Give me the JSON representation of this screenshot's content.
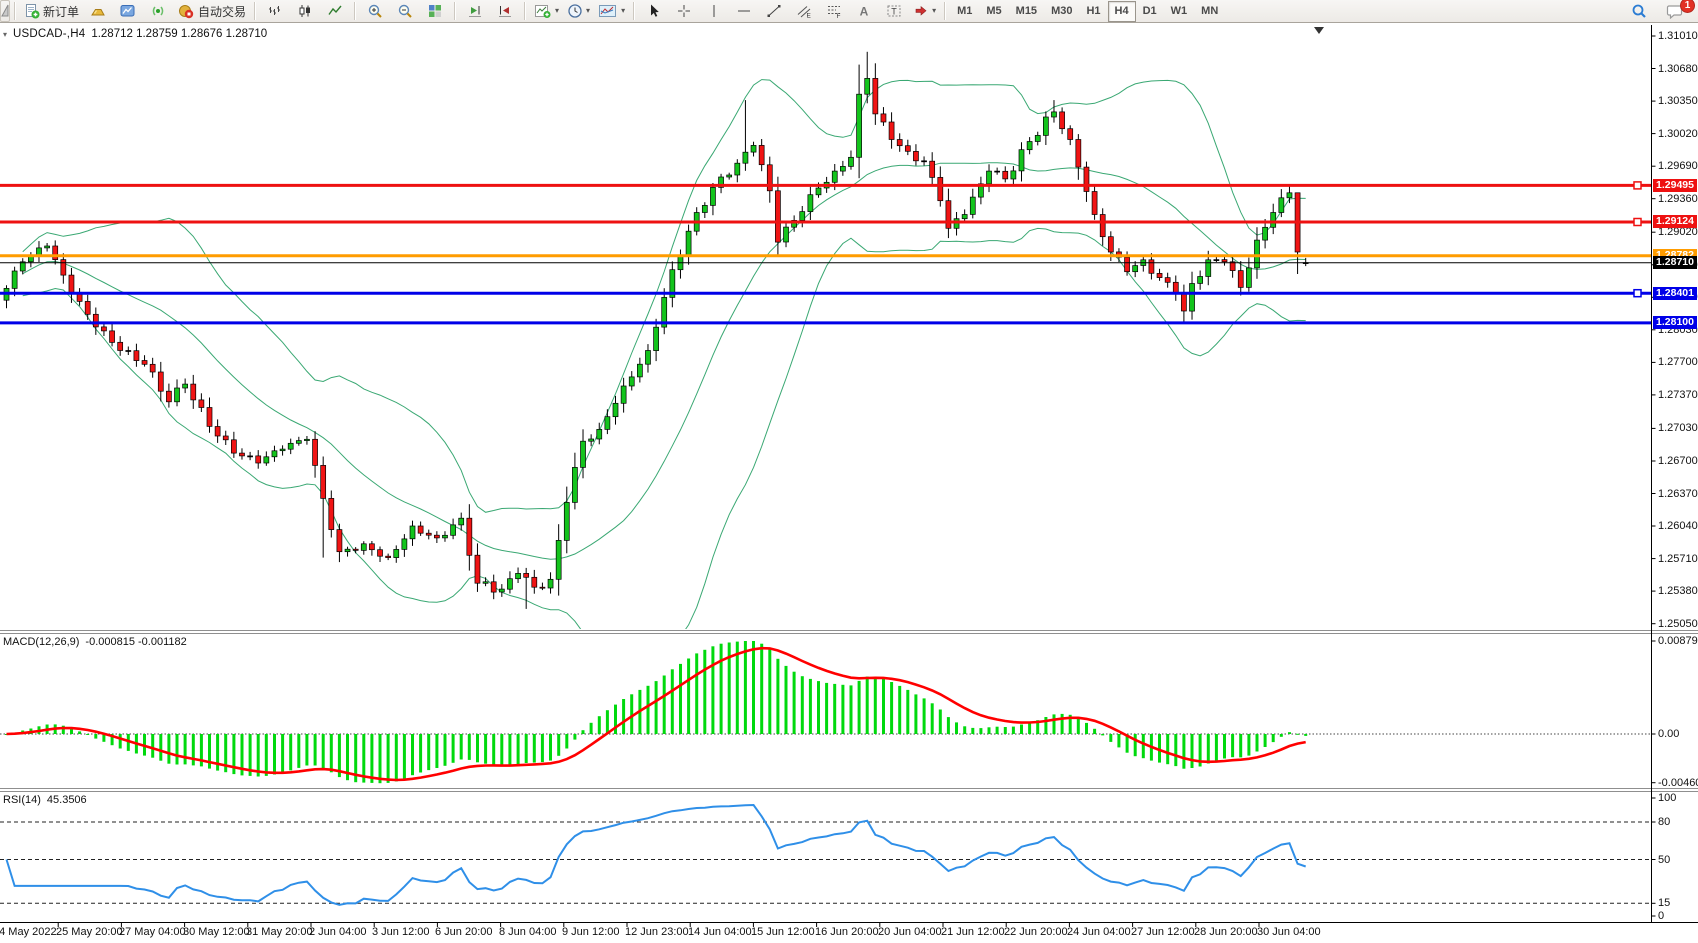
{
  "toolbar": {
    "new_order": "新订单",
    "auto_trading": "自动交易",
    "timeframes": [
      "M1",
      "M5",
      "M15",
      "M30",
      "H1",
      "H4",
      "D1",
      "W1",
      "MN"
    ],
    "active_timeframe": "H4",
    "notification_badge": "1"
  },
  "chart": {
    "symbol_period": "USDCAD-,H4",
    "quotes": "1.28712 1.28759 1.28676 1.28710",
    "current_price": "1.28710",
    "price_axis": [
      "1.31010",
      "1.30680",
      "1.30350",
      "1.30020",
      "1.29690",
      "1.29360",
      "1.29020",
      "1.28690",
      "1.28360",
      "1.28030",
      "1.27700",
      "1.27370",
      "1.27030",
      "1.26700",
      "1.26370",
      "1.26040",
      "1.25710",
      "1.25380",
      "1.25050"
    ],
    "levels": [
      {
        "price": "1.29495",
        "color": "#ee1111",
        "handle": true
      },
      {
        "price": "1.29124",
        "color": "#ee1111",
        "handle": true
      },
      {
        "price": "1.28782",
        "color": "#ff9c00",
        "handle": false
      },
      {
        "price": "1.28401",
        "color": "#0000e8",
        "handle": true
      },
      {
        "price": "1.28100",
        "color": "#0000e8",
        "handle": false
      }
    ],
    "time_axis": [
      "24 May 2022",
      "25 May 20:00",
      "27 May 04:00",
      "30 May 12:00",
      "31 May 20:00",
      "2 Jun 04:00",
      "3 Jun 12:00",
      "6 Jun 20:00",
      "8 Jun 04:00",
      "9 Jun 12:00",
      "12 Jun 23:00",
      "14 Jun 04:00",
      "15 Jun 12:00",
      "16 Jun 20:00",
      "20 Jun 04:00",
      "21 Jun 12:00",
      "22 Jun 20:00",
      "24 Jun 04:00",
      "27 Jun 12:00",
      "28 Jun 20:00",
      "30 Jun 04:00"
    ]
  },
  "macd": {
    "name": "MACD(12,26,9)",
    "values": "-0.000815 -0.001182",
    "axis_max": "0.008791",
    "axis_zero": "0.00",
    "axis_min": "-0.004601"
  },
  "rsi": {
    "name": "RSI(14)",
    "value": "45.3506",
    "axis": [
      "100",
      "80",
      "50",
      "15",
      "0"
    ],
    "levels": [
      80,
      50,
      15
    ]
  },
  "chart_data": {
    "type": "candlestick",
    "symbol": "USDCAD",
    "timeframe": "H4",
    "last_bar": {
      "open": 1.28712,
      "high": 1.28759,
      "low": 1.28676,
      "close": 1.2871
    },
    "bars": 161,
    "price_range": [
      1.2505,
      1.3112
    ],
    "close_waypoints": [
      [
        0,
        1.2845
      ],
      [
        2,
        1.2872
      ],
      [
        5,
        1.2888
      ],
      [
        8,
        1.284
      ],
      [
        11,
        1.2806
      ],
      [
        14,
        1.2782
      ],
      [
        17,
        1.2768
      ],
      [
        20,
        1.273
      ],
      [
        22,
        1.2748
      ],
      [
        25,
        1.2705
      ],
      [
        28,
        1.2678
      ],
      [
        31,
        1.2668
      ],
      [
        34,
        1.2682
      ],
      [
        37,
        1.2692
      ],
      [
        39,
        1.2632
      ],
      [
        41,
        1.2578
      ],
      [
        44,
        1.2586
      ],
      [
        47,
        1.2572
      ],
      [
        50,
        1.2604
      ],
      [
        53,
        1.2592
      ],
      [
        56,
        1.2612
      ],
      [
        58,
        1.2546
      ],
      [
        61,
        1.254
      ],
      [
        63,
        1.2556
      ],
      [
        65,
        1.2542
      ],
      [
        67,
        1.255
      ],
      [
        69,
        1.2628
      ],
      [
        71,
        1.269
      ],
      [
        73,
        1.2702
      ],
      [
        76,
        1.2746
      ],
      [
        79,
        1.2782
      ],
      [
        82,
        1.2864
      ],
      [
        85,
        1.2922
      ],
      [
        88,
        1.2958
      ],
      [
        90,
        1.2972
      ],
      [
        92,
        1.299
      ],
      [
        94,
        1.2944
      ],
      [
        95,
        1.2892
      ],
      [
        97,
        1.2914
      ],
      [
        99,
        1.294
      ],
      [
        102,
        1.2964
      ],
      [
        104,
        1.2978
      ],
      [
        105,
        1.3042
      ],
      [
        106,
        1.3058
      ],
      [
        107,
        1.3022
      ],
      [
        109,
        1.2996
      ],
      [
        111,
        1.2984
      ],
      [
        113,
        1.2974
      ],
      [
        115,
        1.2934
      ],
      [
        116,
        1.2906
      ],
      [
        118,
        1.292
      ],
      [
        121,
        1.2964
      ],
      [
        123,
        1.2956
      ],
      [
        126,
        1.2994
      ],
      [
        129,
        1.3024
      ],
      [
        131,
        1.2996
      ],
      [
        134,
        1.292
      ],
      [
        136,
        1.2882
      ],
      [
        138,
        1.2862
      ],
      [
        140,
        1.2874
      ],
      [
        142,
        1.2856
      ],
      [
        144,
        1.284
      ],
      [
        145,
        1.2822
      ],
      [
        146,
        1.285
      ],
      [
        148,
        1.2874
      ],
      [
        150,
        1.2872
      ],
      [
        152,
        1.2846
      ],
      [
        154,
        1.2894
      ],
      [
        156,
        1.2922
      ],
      [
        158,
        1.2942
      ],
      [
        159,
        1.2882
      ],
      [
        160,
        1.2871
      ]
    ],
    "wick_overrides": [
      [
        4,
        "high",
        1.2893
      ],
      [
        39,
        "low",
        1.2572
      ],
      [
        64,
        "low",
        1.252
      ],
      [
        91,
        "high",
        1.3036
      ],
      [
        95,
        "low",
        1.2878
      ],
      [
        105,
        "high",
        1.3072
      ],
      [
        106,
        "high",
        1.3085
      ],
      [
        129,
        "high",
        1.3036
      ],
      [
        145,
        "low",
        1.281
      ],
      [
        158,
        "high",
        1.2949
      ],
      [
        159,
        "high",
        1.2896
      ]
    ],
    "overlays": {
      "bollinger": {
        "period": 20,
        "deviation": 2,
        "color": "#3aa873"
      }
    },
    "horizontal_levels": [
      1.29495,
      1.29124,
      1.28782,
      1.28401,
      1.281
    ],
    "indicators": [
      {
        "type": "MACD",
        "params": [
          12,
          26,
          9
        ],
        "values": [
          -0.000815,
          -0.001182
        ],
        "range": [
          -0.004601,
          0.008791
        ],
        "histogram_color": "#00d90d",
        "signal_color": "#ff0000"
      },
      {
        "type": "RSI",
        "params": [
          14
        ],
        "value": 45.3506,
        "range": [
          0,
          100
        ],
        "levels": [
          15,
          50,
          80
        ],
        "color": "#2f8fe8"
      }
    ],
    "colors": {
      "bull": "#13c41c",
      "bear": "#f01414",
      "level_red": "#ee1111",
      "level_orange": "#ff9c00",
      "level_blue": "#0000e8",
      "current_price_line": "#000000"
    }
  }
}
